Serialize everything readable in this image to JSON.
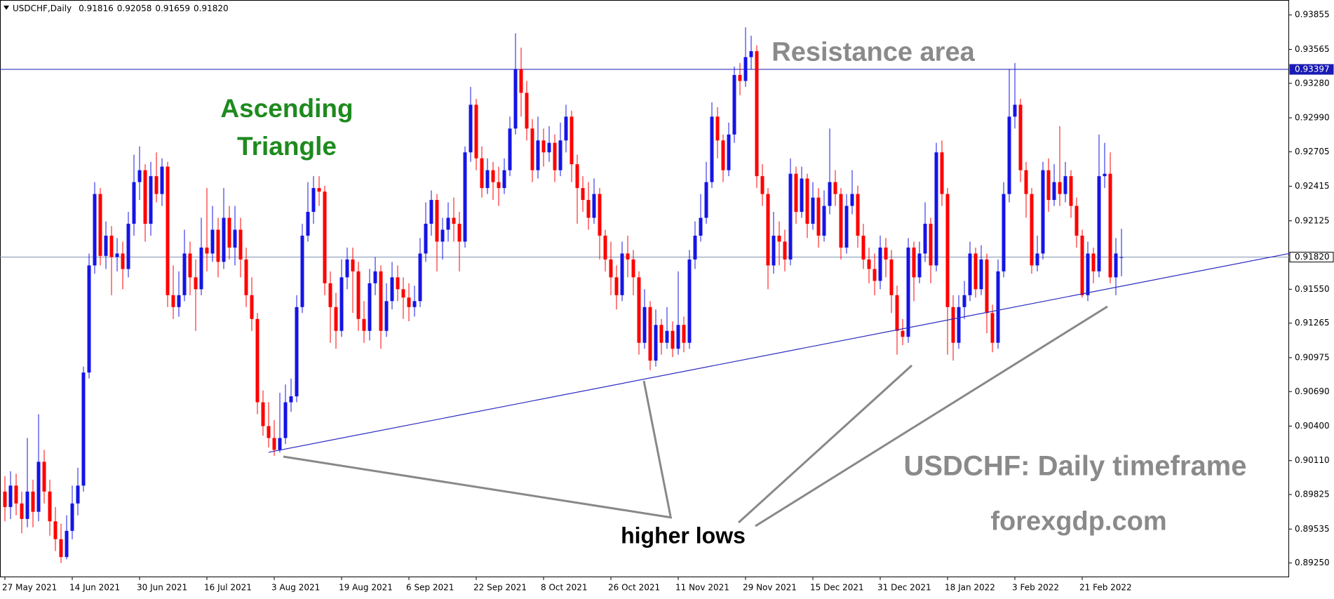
{
  "chart_data": {
    "type": "candlestick",
    "header": "USDCHF,Daily",
    "header_values": [
      "0.91816",
      "0.92058",
      "0.91659",
      "0.91820"
    ],
    "up_color": "#1414e6",
    "down_color": "#ff0000",
    "categories": [
      "27 May 2021",
      null,
      null,
      null,
      null,
      null,
      null,
      null,
      null,
      null,
      null,
      null,
      "14 Jun 2021",
      null,
      null,
      null,
      null,
      null,
      null,
      null,
      null,
      null,
      null,
      null,
      "30 Jun 2021",
      null,
      null,
      null,
      null,
      null,
      null,
      null,
      null,
      null,
      null,
      null,
      "16 Jul 2021",
      null,
      null,
      null,
      null,
      null,
      null,
      null,
      null,
      null,
      null,
      null,
      "3 Aug 2021",
      null,
      null,
      null,
      null,
      null,
      null,
      null,
      null,
      null,
      null,
      null,
      "19 Aug 2021",
      null,
      null,
      null,
      null,
      null,
      null,
      null,
      null,
      null,
      null,
      null,
      "6 Sep 2021",
      null,
      null,
      null,
      null,
      null,
      null,
      null,
      null,
      null,
      null,
      null,
      "22 Sep 2021",
      null,
      null,
      null,
      null,
      null,
      null,
      null,
      null,
      null,
      null,
      null,
      "8 Oct 2021",
      null,
      null,
      null,
      null,
      null,
      null,
      null,
      null,
      null,
      null,
      null,
      "26 Oct 2021",
      null,
      null,
      null,
      null,
      null,
      null,
      null,
      null,
      null,
      null,
      null,
      "11 Nov 2021",
      null,
      null,
      null,
      null,
      null,
      null,
      null,
      null,
      null,
      null,
      null,
      "29 Nov 2021",
      null,
      null,
      null,
      null,
      null,
      null,
      null,
      null,
      null,
      null,
      null,
      "15 Dec 2021",
      null,
      null,
      null,
      null,
      null,
      null,
      null,
      null,
      null,
      null,
      null,
      "31 Dec 2021",
      null,
      null,
      null,
      null,
      null,
      null,
      null,
      null,
      null,
      null,
      null,
      "18 Jan 2022",
      null,
      null,
      null,
      null,
      null,
      null,
      null,
      null,
      null,
      null,
      null,
      "3 Feb 2022",
      null,
      null,
      null,
      null,
      null,
      null,
      null,
      null,
      null,
      null,
      null,
      "21 Feb 2022",
      null,
      null,
      null,
      null,
      null,
      null,
      null
    ],
    "open": [
      0.8985,
      0.8972,
      0.899,
      0.8975,
      0.8962,
      0.8985,
      0.8968,
      0.901,
      0.8985,
      0.896,
      0.8945,
      0.893,
      0.8952,
      0.8975,
      0.899,
      0.9085,
      0.9175,
      0.9235,
      0.9183,
      0.92,
      0.9182,
      0.9185,
      0.9172,
      0.921,
      0.9245,
      0.9255,
      0.921,
      0.925,
      0.9235,
      0.9258,
      0.915,
      0.914,
      0.915,
      0.9185,
      0.9165,
      0.9155,
      0.919,
      0.9185,
      0.9205,
      0.9178,
      0.9215,
      0.919,
      0.9205,
      0.918,
      0.915,
      0.913,
      0.906,
      0.904,
      0.903,
      0.902,
      0.903,
      0.906,
      0.9065,
      0.914,
      0.92,
      0.922,
      0.924,
      0.9237,
      0.916,
      0.914,
      0.912,
      0.9165,
      0.918,
      0.917,
      0.913,
      0.912,
      0.916,
      0.917,
      0.912,
      0.9145,
      0.9165,
      0.9155,
      0.9148,
      0.914,
      0.9145,
      0.9185,
      0.921,
      0.923,
      0.9195,
      0.9205,
      0.9215,
      0.921,
      0.9195,
      0.927,
      0.931,
      0.9265,
      0.924,
      0.9255,
      0.9245,
      0.924,
      0.9255,
      0.929,
      0.934,
      0.932,
      0.929,
      0.9255,
      0.928,
      0.927,
      0.9278,
      0.9255,
      0.928,
      0.93,
      0.926,
      0.924,
      0.923,
      0.9215,
      0.9235,
      0.92,
      0.918,
      0.9165,
      0.915,
      0.9185,
      0.918,
      0.9165,
      0.911,
      0.914,
      0.9095,
      0.9125,
      0.911,
      0.912,
      0.9105,
      0.9125,
      0.911,
      0.918,
      0.92,
      0.9215,
      0.9245,
      0.93,
      0.928,
      0.9255,
      0.9285,
      0.9335,
      0.933,
      0.935,
      0.9355,
      0.925,
      0.9235,
      0.9175,
      0.92,
      0.9195,
      0.918,
      0.9252,
      0.922,
      0.9248,
      0.921,
      0.9232,
      0.92,
      0.9225,
      0.9245,
      0.9235,
      0.919,
      0.9225,
      0.9235,
      0.92,
      0.918,
      0.9172,
      0.9162,
      0.919,
      0.918,
      0.915,
      0.912,
      0.9115,
      0.919,
      0.9165,
      0.9185,
      0.921,
      0.9175,
      0.927,
      0.9235,
      0.914,
      0.911,
      0.914,
      0.915,
      0.9185,
      0.9155,
      0.918,
      0.9135,
      0.911,
      0.917,
      0.9235,
      0.93,
      0.931,
      0.9255,
      0.9235,
      0.9175,
      0.9185,
      0.9255,
      0.923,
      0.9245,
      0.9235,
      0.925,
      0.9225,
      0.92,
      0.915,
      0.9185,
      0.917,
      0.925,
      0.9252,
      0.9165,
      0.91816
    ],
    "high": [
      0.8998,
      0.9002,
      0.9,
      0.8985,
      0.903,
      0.8995,
      0.905,
      0.902,
      0.8995,
      0.8972,
      0.8958,
      0.8965,
      0.899,
      0.9005,
      0.909,
      0.9185,
      0.9245,
      0.924,
      0.9212,
      0.9208,
      0.9198,
      0.9195,
      0.922,
      0.9268,
      0.9275,
      0.926,
      0.9262,
      0.927,
      0.9265,
      0.9262,
      0.9175,
      0.917,
      0.9205,
      0.9195,
      0.918,
      0.9215,
      0.924,
      0.9225,
      0.9215,
      0.924,
      0.9225,
      0.9225,
      0.9215,
      0.919,
      0.9165,
      0.9135,
      0.907,
      0.906,
      0.9045,
      0.9068,
      0.9075,
      0.908,
      0.915,
      0.921,
      0.9245,
      0.925,
      0.925,
      0.9242,
      0.917,
      0.9152,
      0.918,
      0.919,
      0.919,
      0.9178,
      0.9145,
      0.9172,
      0.9182,
      0.9175,
      0.916,
      0.9178,
      0.9175,
      0.9165,
      0.916,
      0.9158,
      0.9198,
      0.9228,
      0.9238,
      0.9235,
      0.9215,
      0.9228,
      0.9232,
      0.922,
      0.9275,
      0.9325,
      0.9315,
      0.9275,
      0.9265,
      0.9262,
      0.9258,
      0.9265,
      0.93,
      0.937,
      0.9358,
      0.933,
      0.9298,
      0.93,
      0.929,
      0.9292,
      0.9285,
      0.9295,
      0.931,
      0.9305,
      0.9268,
      0.925,
      0.9245,
      0.9248,
      0.924,
      0.9205,
      0.9195,
      0.9175,
      0.9195,
      0.92,
      0.9188,
      0.917,
      0.9155,
      0.9145,
      0.9138,
      0.913,
      0.914,
      0.9128,
      0.917,
      0.9132,
      0.9188,
      0.9212,
      0.9235,
      0.9262,
      0.9312,
      0.9308,
      0.9285,
      0.9295,
      0.9342,
      0.9345,
      0.9375,
      0.9368,
      0.936,
      0.926,
      0.924,
      0.922,
      0.9212,
      0.9205,
      0.9265,
      0.9258,
      0.9258,
      0.9252,
      0.9245,
      0.924,
      0.9238,
      0.929,
      0.9255,
      0.924,
      0.9235,
      0.9255,
      0.9242,
      0.921,
      0.919,
      0.9185,
      0.92,
      0.9198,
      0.9188,
      0.9158,
      0.913,
      0.9198,
      0.9195,
      0.9195,
      0.9228,
      0.9215,
      0.9278,
      0.928,
      0.924,
      0.915,
      0.915,
      0.9162,
      0.9195,
      0.919,
      0.9192,
      0.9185,
      0.9142,
      0.918,
      0.9245,
      0.934,
      0.9345,
      0.9315,
      0.9262,
      0.924,
      0.92,
      0.9262,
      0.9265,
      0.926,
      0.9292,
      0.9262,
      0.9255,
      0.9232,
      0.9205,
      0.9195,
      0.919,
      0.9285,
      0.9278,
      0.927,
      0.9198,
      0.92058
    ],
    "low": [
      0.896,
      0.8962,
      0.8965,
      0.895,
      0.8955,
      0.8955,
      0.896,
      0.8975,
      0.8948,
      0.8935,
      0.8925,
      0.8928,
      0.8945,
      0.8965,
      0.8985,
      0.908,
      0.9168,
      0.9175,
      0.9172,
      0.915,
      0.917,
      0.9155,
      0.9165,
      0.92,
      0.923,
      0.9195,
      0.92,
      0.9228,
      0.9225,
      0.914,
      0.913,
      0.9132,
      0.9145,
      0.915,
      0.912,
      0.915,
      0.917,
      0.9178,
      0.9165,
      0.9172,
      0.918,
      0.9175,
      0.9165,
      0.914,
      0.912,
      0.905,
      0.9032,
      0.9022,
      0.9015,
      0.9018,
      0.9025,
      0.9052,
      0.906,
      0.9135,
      0.9195,
      0.921,
      0.9225,
      0.915,
      0.911,
      0.9105,
      0.9115,
      0.9155,
      0.9135,
      0.912,
      0.911,
      0.9112,
      0.915,
      0.9105,
      0.9115,
      0.9138,
      0.9145,
      0.913,
      0.9128,
      0.9132,
      0.914,
      0.9178,
      0.92,
      0.917,
      0.918,
      0.9195,
      0.9195,
      0.917,
      0.919,
      0.9262,
      0.9255,
      0.9232,
      0.9235,
      0.923,
      0.9225,
      0.9235,
      0.925,
      0.9285,
      0.93,
      0.928,
      0.9245,
      0.9248,
      0.9258,
      0.9262,
      0.9245,
      0.925,
      0.927,
      0.9245,
      0.921,
      0.922,
      0.9205,
      0.921,
      0.918,
      0.917,
      0.915,
      0.9138,
      0.9145,
      0.9165,
      0.915,
      0.91,
      0.9105,
      0.9087,
      0.909,
      0.91,
      0.9105,
      0.9098,
      0.91,
      0.9102,
      0.9105,
      0.9172,
      0.9195,
      0.921,
      0.924,
      0.9265,
      0.9245,
      0.925,
      0.9278,
      0.9318,
      0.9325,
      0.934,
      0.924,
      0.9225,
      0.9155,
      0.9168,
      0.9175,
      0.917,
      0.9175,
      0.921,
      0.9215,
      0.9198,
      0.9205,
      0.919,
      0.9195,
      0.9218,
      0.9225,
      0.918,
      0.9185,
      0.9218,
      0.919,
      0.9172,
      0.916,
      0.915,
      0.9155,
      0.9165,
      0.9135,
      0.91,
      0.9108,
      0.911,
      0.9145,
      0.916,
      0.9178,
      0.916,
      0.917,
      0.9225,
      0.91,
      0.9095,
      0.9105,
      0.913,
      0.9145,
      0.9148,
      0.915,
      0.9118,
      0.9102,
      0.9105,
      0.9165,
      0.9228,
      0.929,
      0.9245,
      0.9215,
      0.9168,
      0.917,
      0.918,
      0.922,
      0.9225,
      0.9225,
      0.9228,
      0.9215,
      0.919,
      0.9148,
      0.9145,
      0.916,
      0.9165,
      0.924,
      0.916,
      0.915,
      0.91659
    ],
    "close": [
      0.8972,
      0.899,
      0.8975,
      0.8962,
      0.8985,
      0.8968,
      0.901,
      0.8985,
      0.896,
      0.8945,
      0.893,
      0.8952,
      0.8975,
      0.899,
      0.9085,
      0.9175,
      0.9235,
      0.9183,
      0.92,
      0.9182,
      0.9185,
      0.9172,
      0.921,
      0.9245,
      0.9255,
      0.921,
      0.925,
      0.9235,
      0.9258,
      0.915,
      0.914,
      0.915,
      0.9185,
      0.9165,
      0.9155,
      0.919,
      0.9185,
      0.9205,
      0.9178,
      0.9215,
      0.919,
      0.9205,
      0.918,
      0.915,
      0.913,
      0.906,
      0.904,
      0.903,
      0.902,
      0.903,
      0.906,
      0.9065,
      0.914,
      0.92,
      0.922,
      0.924,
      0.9237,
      0.916,
      0.914,
      0.912,
      0.9165,
      0.918,
      0.917,
      0.913,
      0.912,
      0.916,
      0.917,
      0.912,
      0.9145,
      0.9165,
      0.9155,
      0.9148,
      0.914,
      0.9145,
      0.9185,
      0.921,
      0.923,
      0.9195,
      0.9205,
      0.9215,
      0.921,
      0.9195,
      0.927,
      0.931,
      0.9265,
      0.924,
      0.9255,
      0.9245,
      0.924,
      0.9255,
      0.929,
      0.934,
      0.932,
      0.929,
      0.9255,
      0.928,
      0.927,
      0.9278,
      0.9255,
      0.928,
      0.93,
      0.926,
      0.924,
      0.923,
      0.9215,
      0.9235,
      0.92,
      0.918,
      0.9165,
      0.915,
      0.9185,
      0.918,
      0.9165,
      0.911,
      0.914,
      0.9095,
      0.9125,
      0.911,
      0.912,
      0.9105,
      0.9125,
      0.911,
      0.918,
      0.92,
      0.9215,
      0.9245,
      0.93,
      0.928,
      0.9255,
      0.9285,
      0.9335,
      0.933,
      0.935,
      0.9355,
      0.925,
      0.9235,
      0.9175,
      0.92,
      0.9195,
      0.918,
      0.9252,
      0.922,
      0.9248,
      0.921,
      0.9232,
      0.92,
      0.9225,
      0.9245,
      0.9235,
      0.919,
      0.9225,
      0.9235,
      0.92,
      0.918,
      0.9172,
      0.9162,
      0.919,
      0.918,
      0.915,
      0.912,
      0.9115,
      0.919,
      0.9165,
      0.9185,
      0.921,
      0.9175,
      0.927,
      0.9235,
      0.914,
      0.911,
      0.914,
      0.915,
      0.9185,
      0.9155,
      0.918,
      0.9135,
      0.911,
      0.917,
      0.9235,
      0.93,
      0.931,
      0.9255,
      0.9235,
      0.9175,
      0.9185,
      0.9255,
      0.923,
      0.9245,
      0.9235,
      0.925,
      0.9225,
      0.92,
      0.915,
      0.9185,
      0.917,
      0.925,
      0.9252,
      0.9165,
      0.9185,
      0.9182
    ],
    "ylim": [
      0.8913,
      0.9398
    ],
    "yticks": [
      0.93855,
      0.93565,
      {
        "value": 0.9328,
        "label": "0.93280"
      },
      {
        "value": 0.9299,
        "label": "0.92990"
      },
      0.92705,
      0.92415,
      0.92125,
      {
        "value": 0.9155,
        "label": "0.91550"
      },
      0.91265,
      0.90975,
      {
        "value": 0.9069,
        "label": "0.90690"
      },
      {
        "value": 0.904,
        "label": "0.90400"
      },
      {
        "value": 0.9011,
        "label": "0.90110"
      },
      0.89825,
      0.89535,
      {
        "value": 0.8925,
        "label": "0.89250"
      }
    ],
    "resistance": {
      "value": 0.93397,
      "label": "0.93397",
      "color": "#1a1ab4"
    },
    "price_line": {
      "value": 0.9182,
      "label": "0.91820",
      "color": "#8494b4"
    },
    "trendline": {
      "x": [
        47,
        228.9
      ],
      "y": [
        0.9018,
        0.9185
      ],
      "color": "#2a2ac0"
    },
    "annotations": {
      "resistance": "Resistance area",
      "pattern": "Ascending Triangle",
      "lows": "higher lows",
      "timeframe": "USDCHF: Daily timeframe",
      "site": "forexgdp.com"
    }
  }
}
